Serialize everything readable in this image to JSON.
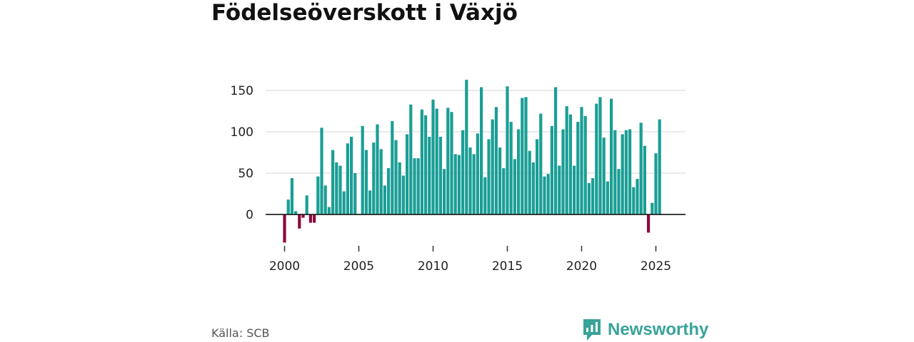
{
  "title": "Födelseöverskott i Växjö",
  "source": "Källa: SCB",
  "brand": {
    "name": "Newsworthy",
    "icon": "newsworthy-logo-icon",
    "color": "#38a39a"
  },
  "colors": {
    "positive": "#1a9e95",
    "negative": "#8c0a3c",
    "gridline": "#dddddd",
    "zeroline": "#222222"
  },
  "chart_data": {
    "type": "bar",
    "title": "Födelseöverskott i Växjö",
    "xlabel": "",
    "ylabel": "",
    "frequency": "quarterly",
    "x_start": "2000 Q1",
    "ylim": [
      -35,
      165
    ],
    "yticks": [
      0,
      50,
      100,
      150
    ],
    "xticks": [
      "2000",
      "2005",
      "2010",
      "2015",
      "2020",
      "2025"
    ],
    "grid": true,
    "values": [
      -34,
      18,
      44,
      4,
      -17,
      -4,
      23,
      -10,
      -10,
      46,
      105,
      35,
      9,
      78,
      63,
      59,
      28,
      86,
      94,
      50,
      0,
      107,
      78,
      29,
      87,
      109,
      79,
      35,
      56,
      113,
      90,
      63,
      47,
      97,
      133,
      68,
      68,
      127,
      120,
      94,
      139,
      128,
      94,
      55,
      129,
      124,
      73,
      72,
      102,
      163,
      81,
      73,
      98,
      154,
      45,
      91,
      115,
      130,
      81,
      56,
      155,
      112,
      67,
      103,
      141,
      142,
      77,
      63,
      91,
      122,
      46,
      49,
      107,
      154,
      59,
      103,
      131,
      121,
      59,
      112,
      130,
      119,
      38,
      44,
      134,
      142,
      93,
      40,
      140,
      102,
      55,
      97,
      102,
      103,
      33,
      43,
      111,
      83,
      -22,
      14,
      74,
      115
    ]
  }
}
